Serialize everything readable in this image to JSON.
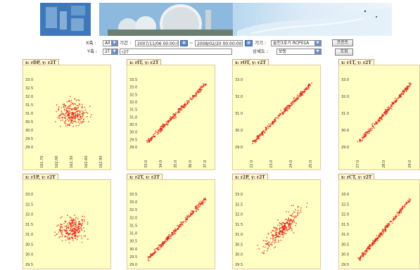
{
  "filters": {
    "x_axis_label": "X축 :",
    "x_axis_value": "All",
    "period_label": "기간 :",
    "start_datetime": "2007/11/06 00:00:00",
    "tilde": "~",
    "end_datetime": "2008/02/20 00:00:00",
    "device_label": "기기 :",
    "device_value": "울진3호기 RCP01A",
    "print_button": "프린트",
    "y_axis_label": "Y축 :",
    "y_axis_value": "2T",
    "y_axis_text": "r2T",
    "detail_label": "상세도 :",
    "detail_value": "보통",
    "search_button": "조회"
  },
  "colors": {
    "point": "#e21e12",
    "plot_bg": "#ffffc4",
    "tab_border": "#caa76f"
  },
  "panels": [
    {
      "title": "x: rDP, y: r2T",
      "yticks": [
        "33.0",
        "32.5",
        "32.0",
        "31.5",
        "31.0",
        "30.5",
        "30.0",
        "29.5",
        "29.0"
      ],
      "xticks": [
        "161.70",
        "162.00",
        "162.30",
        "162.60",
        "162.90"
      ],
      "pattern": "cloud"
    },
    {
      "title": "x: rIT, y: r2T",
      "yticks": [
        "33.5",
        "33.0",
        "32.5",
        "32.0",
        "31.5",
        "31.0",
        "30.5",
        "30.0",
        "29.5",
        "29.0"
      ],
      "xticks": [
        "33.0",
        "34.0",
        "35.0",
        "36.0",
        "37.0"
      ],
      "pattern": "line"
    },
    {
      "title": "x: rOT, y: r2T",
      "yticks": [
        "33.0",
        "32.0",
        "31.0",
        "30.0",
        "29.0"
      ],
      "xticks": [
        "22.0",
        "23.0",
        "24.0",
        "25.0"
      ],
      "pattern": "line"
    },
    {
      "title": "x: r1T, y: r2T",
      "yticks": [
        "33.0",
        "32.0",
        "31.0",
        "30.0",
        "29.0"
      ],
      "xticks": [
        "27.0",
        "28.0",
        "29.0"
      ],
      "pattern": "line"
    },
    {
      "title": "x: r1P, y: r2T",
      "yticks": [
        "33.0",
        "32.5",
        "32.0",
        "31.5",
        "31.0",
        "30.5",
        "30.0",
        "29.5"
      ],
      "xticks": [],
      "pattern": "cloud"
    },
    {
      "title": "x: r2T, y: r2T",
      "yticks": [
        "33.5",
        "33.0",
        "32.5",
        "32.0",
        "31.5",
        "31.0",
        "30.5",
        "30.0",
        "29.5",
        "29.0"
      ],
      "xticks": [],
      "pattern": "line"
    },
    {
      "title": "x: r2P, y: r2T",
      "yticks": [
        "33.0",
        "32.5",
        "32.0",
        "31.5",
        "31.0",
        "30.5",
        "30.0",
        "29.5"
      ],
      "xticks": [],
      "pattern": "ellipse"
    },
    {
      "title": "x: rCT, y: r2T",
      "yticks": [
        "33.0",
        "32.5",
        "32.0",
        "31.5",
        "31.0",
        "30.5",
        "30.0",
        "29.5"
      ],
      "xticks": [],
      "pattern": "line"
    }
  ]
}
